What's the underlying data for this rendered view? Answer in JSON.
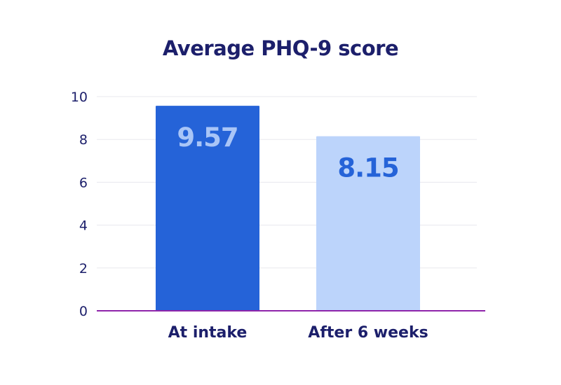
{
  "chart_data": {
    "type": "bar",
    "title": "Average PHQ-9 score",
    "xlabel": "",
    "ylabel": "",
    "categories": [
      "At intake",
      "After 6 weeks"
    ],
    "values": [
      9.57,
      8.15
    ],
    "data_labels": [
      "9.57",
      "8.15"
    ],
    "ylim": [
      0,
      10
    ],
    "yticks": [
      0,
      2,
      4,
      6,
      8,
      10
    ],
    "grid": true,
    "legend": "none",
    "colors": {
      "bars": [
        "#2563d8",
        "#bcd4fb"
      ],
      "data_labels": [
        "#a9c5f7",
        "#2563d8"
      ],
      "axis_baseline": "#8e24aa",
      "gridlines": "#e8e8ee",
      "text": "#1c1f6b"
    }
  }
}
